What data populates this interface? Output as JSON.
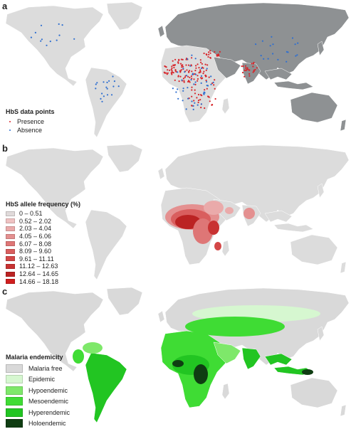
{
  "panels": {
    "a": {
      "letter": "a",
      "legend_title": "HbS data points",
      "items": [
        {
          "label": "Presence",
          "color": "#d7262b"
        },
        {
          "label": "Absence",
          "color": "#2f6fd0"
        }
      ]
    },
    "b": {
      "letter": "b",
      "legend_title": "HbS allele frequency (%)",
      "items": [
        {
          "label": "0 – 0.51",
          "color": "#e0dada"
        },
        {
          "label": "0.52 – 2.02",
          "color": "#efc2c2"
        },
        {
          "label": "2.03 – 4.04",
          "color": "#eaaaaa"
        },
        {
          "label": "4.05 – 6.06",
          "color": "#e49090"
        },
        {
          "label": "6.07 – 8.08",
          "color": "#de7676"
        },
        {
          "label": "8.09 – 9.60",
          "color": "#d95e5e"
        },
        {
          "label": "9.61 – 11.11",
          "color": "#d34747"
        },
        {
          "label": "11.12 – 12.63",
          "color": "#c83232"
        },
        {
          "label": "12.64 – 14.65",
          "color": "#bb2323"
        },
        {
          "label": "14.66 – 18.18",
          "color": "#d01e1e"
        }
      ]
    },
    "c": {
      "letter": "c",
      "legend_title": "Malaria endemicity",
      "items": [
        {
          "label": "Malaria free",
          "color": "#d9d9d9"
        },
        {
          "label": "Epidemic",
          "color": "#d6f7d0"
        },
        {
          "label": "Hypoendemic",
          "color": "#7ee86a"
        },
        {
          "label": "Mesoendemic",
          "color": "#3fdc34"
        },
        {
          "label": "Hyperendemic",
          "color": "#22c522"
        },
        {
          "label": "Holoendemic",
          "color": "#0f3d12"
        }
      ]
    }
  },
  "colors": {
    "land": "#dcdcdc",
    "land_dark": "#8e9193",
    "ocean": "#ffffff"
  }
}
